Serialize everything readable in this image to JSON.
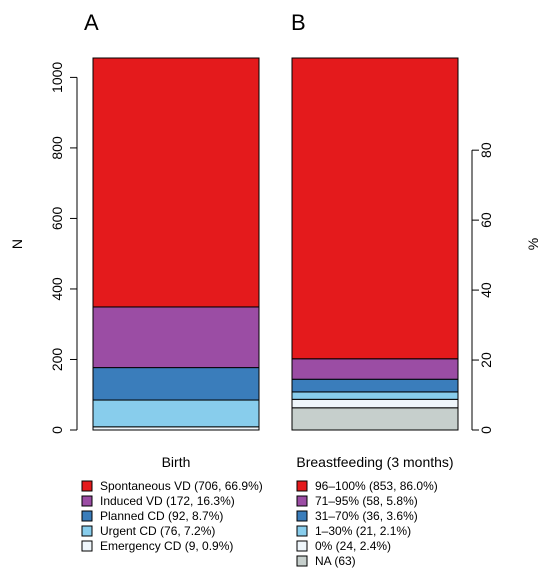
{
  "chart_data": {
    "type": "bar",
    "stacked": true,
    "panels": [
      {
        "label": "A",
        "category": "Birth"
      },
      {
        "label": "B",
        "category": "Breastfeeding (3 months)"
      }
    ],
    "left_axis": {
      "label": "N",
      "ticks": [
        0,
        200,
        400,
        600,
        800,
        1000
      ],
      "range": [
        0,
        1055
      ]
    },
    "right_axis": {
      "label": "%",
      "ticks": [
        0,
        20,
        40,
        60,
        80
      ]
    },
    "series": [
      {
        "category": "Birth",
        "segments": [
          {
            "name": "Emergency CD (9, 0.9%)",
            "value": 9,
            "color": "#eff6fb"
          },
          {
            "name": "Urgent CD (76, 7.2%)",
            "value": 76,
            "color": "#88cdec"
          },
          {
            "name": "Planned CD (92, 8.7%)",
            "value": 92,
            "color": "#3a7dbb"
          },
          {
            "name": "Induced VD (172, 16.3%)",
            "value": 172,
            "color": "#9b4da4"
          },
          {
            "name": "Spontaneous VD (706, 66.9%)",
            "value": 706,
            "color": "#e41a1c"
          }
        ]
      },
      {
        "category": "Breastfeeding (3 months)",
        "segments": [
          {
            "name": "NA (63)",
            "value": 63,
            "color": "#c6cfcc"
          },
          {
            "name": "0% (24, 2.4%)",
            "value": 24,
            "color": "#eff6fb"
          },
          {
            "name": "1–30% (21, 2.1%)",
            "value": 21,
            "color": "#88cdec"
          },
          {
            "name": "31–70% (36, 3.6%)",
            "value": 36,
            "color": "#3a7dbb"
          },
          {
            "name": "71–95% (58, 5.8%)",
            "value": 58,
            "color": "#9b4da4"
          },
          {
            "name": "96–100% (853, 86.0%)",
            "value": 853,
            "color": "#e41a1c"
          }
        ]
      }
    ],
    "legends": [
      [
        "Spontaneous VD (706, 66.9%)",
        "Induced VD (172, 16.3%)",
        "Planned CD (92, 8.7%)",
        "Urgent CD (76, 7.2%)",
        "Emergency CD (9, 0.9%)"
      ],
      [
        "96–100% (853, 86.0%)",
        "71–95% (58, 5.8%)",
        "31–70% (36, 3.6%)",
        "1–30% (21, 2.1%)",
        "0% (24, 2.4%)",
        "NA (63)"
      ]
    ]
  }
}
